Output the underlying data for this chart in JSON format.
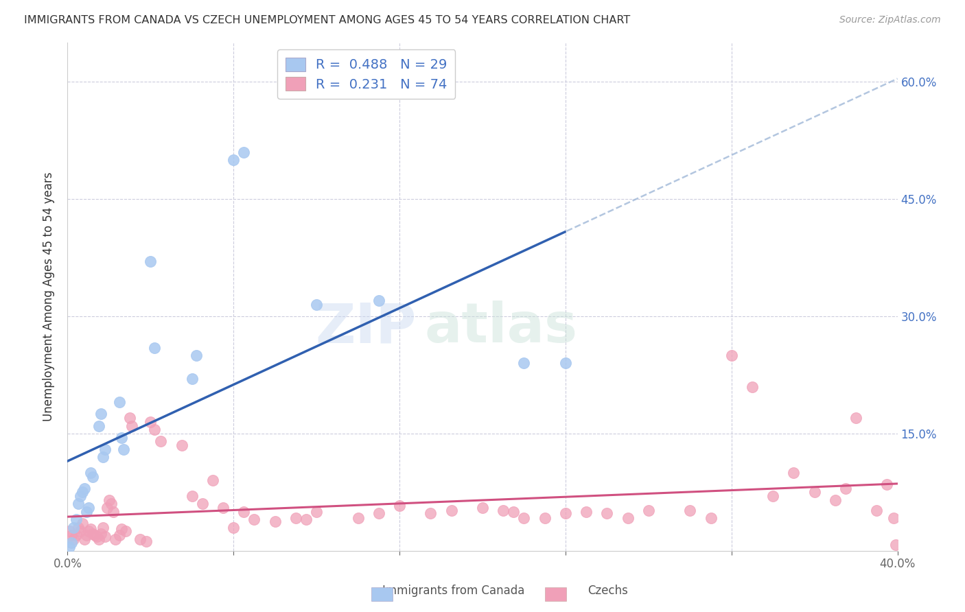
{
  "title": "IMMIGRANTS FROM CANADA VS CZECH UNEMPLOYMENT AMONG AGES 45 TO 54 YEARS CORRELATION CHART",
  "source": "Source: ZipAtlas.com",
  "ylabel": "Unemployment Among Ages 45 to 54 years",
  "xlim": [
    0.0,
    0.4
  ],
  "ylim": [
    0.0,
    0.65
  ],
  "blue_R": 0.488,
  "blue_N": 29,
  "pink_R": 0.231,
  "pink_N": 74,
  "blue_color": "#a8c8f0",
  "pink_color": "#f0a0b8",
  "blue_line_color": "#3060b0",
  "pink_line_color": "#d05080",
  "blue_scatter_x": [
    0.001,
    0.002,
    0.003,
    0.004,
    0.005,
    0.006,
    0.007,
    0.008,
    0.009,
    0.01,
    0.011,
    0.012,
    0.015,
    0.016,
    0.017,
    0.018,
    0.025,
    0.026,
    0.027,
    0.04,
    0.042,
    0.06,
    0.062,
    0.08,
    0.085,
    0.12,
    0.15,
    0.22,
    0.24
  ],
  "blue_scatter_y": [
    0.005,
    0.01,
    0.03,
    0.04,
    0.06,
    0.07,
    0.075,
    0.08,
    0.05,
    0.055,
    0.1,
    0.095,
    0.16,
    0.175,
    0.12,
    0.13,
    0.19,
    0.145,
    0.13,
    0.37,
    0.26,
    0.22,
    0.25,
    0.5,
    0.51,
    0.315,
    0.32,
    0.24,
    0.24
  ],
  "pink_scatter_x": [
    0.001,
    0.002,
    0.003,
    0.004,
    0.005,
    0.006,
    0.007,
    0.008,
    0.009,
    0.01,
    0.011,
    0.012,
    0.013,
    0.014,
    0.015,
    0.016,
    0.017,
    0.018,
    0.019,
    0.02,
    0.021,
    0.022,
    0.023,
    0.025,
    0.026,
    0.028,
    0.03,
    0.031,
    0.035,
    0.038,
    0.04,
    0.042,
    0.045,
    0.055,
    0.06,
    0.065,
    0.07,
    0.075,
    0.08,
    0.085,
    0.09,
    0.1,
    0.11,
    0.115,
    0.12,
    0.14,
    0.15,
    0.16,
    0.175,
    0.185,
    0.2,
    0.21,
    0.215,
    0.22,
    0.23,
    0.24,
    0.25,
    0.26,
    0.27,
    0.28,
    0.3,
    0.31,
    0.32,
    0.33,
    0.34,
    0.35,
    0.36,
    0.37,
    0.375,
    0.38,
    0.39,
    0.395,
    0.398,
    0.399
  ],
  "pink_scatter_y": [
    0.025,
    0.02,
    0.015,
    0.02,
    0.03,
    0.025,
    0.035,
    0.015,
    0.02,
    0.025,
    0.028,
    0.022,
    0.02,
    0.018,
    0.015,
    0.022,
    0.03,
    0.018,
    0.055,
    0.065,
    0.06,
    0.05,
    0.015,
    0.02,
    0.028,
    0.025,
    0.17,
    0.16,
    0.015,
    0.012,
    0.165,
    0.155,
    0.14,
    0.135,
    0.07,
    0.06,
    0.09,
    0.055,
    0.03,
    0.05,
    0.04,
    0.038,
    0.042,
    0.04,
    0.05,
    0.042,
    0.048,
    0.058,
    0.048,
    0.052,
    0.055,
    0.052,
    0.05,
    0.042,
    0.042,
    0.048,
    0.05,
    0.048,
    0.042,
    0.052,
    0.052,
    0.042,
    0.25,
    0.21,
    0.07,
    0.1,
    0.075,
    0.065,
    0.08,
    0.17,
    0.052,
    0.085,
    0.042,
    0.008
  ]
}
